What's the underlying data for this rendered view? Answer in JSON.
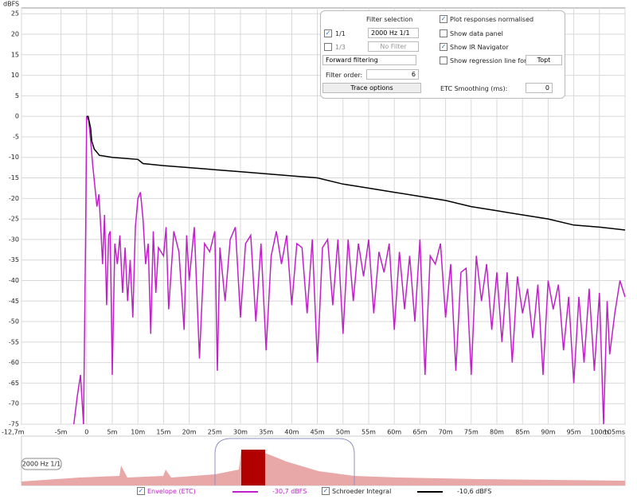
{
  "chart_data": {
    "type": "line",
    "y_label": "dBFS",
    "xlim": [
      -12.7,
      105
    ],
    "ylim": [
      -75,
      26.4
    ],
    "xticks": [
      {
        "value": -12.7,
        "label": "-12,7m"
      },
      {
        "value": -5,
        "label": "-5m"
      },
      0,
      {
        "value": 5,
        "label": "5m"
      },
      {
        "value": 10,
        "label": "10m"
      },
      {
        "value": 15,
        "label": "15m"
      },
      {
        "value": 20,
        "label": "20m"
      },
      {
        "value": 25,
        "label": "25m"
      },
      {
        "value": 30,
        "label": "30m"
      },
      {
        "value": 35,
        "label": "35m"
      },
      {
        "value": 40,
        "label": "40m"
      },
      {
        "value": 45,
        "label": "45m"
      },
      {
        "value": 50,
        "label": "50m"
      },
      {
        "value": 55,
        "label": "55m"
      },
      {
        "value": 60,
        "label": "60m"
      },
      {
        "value": 65,
        "label": "65m"
      },
      {
        "value": 70,
        "label": "70m"
      },
      {
        "value": 75,
        "label": "75m"
      },
      {
        "value": 80,
        "label": "80m"
      },
      {
        "value": 85,
        "label": "85m"
      },
      {
        "value": 90,
        "label": "90m"
      },
      {
        "value": 95,
        "label": "95m"
      },
      {
        "value": 100,
        "label": "100m"
      },
      {
        "value": 105,
        "label": "105ms"
      }
    ],
    "yticks": [
      25,
      20,
      15,
      10,
      5,
      0,
      -5,
      -10,
      -15,
      -20,
      -25,
      -30,
      -35,
      -40,
      -45,
      -50,
      -55,
      -60,
      -65,
      -70,
      -75
    ],
    "grid": true,
    "series": [
      {
        "name": "Envelope (ETC)",
        "color": "#c020c8",
        "cursor": "-30,7 dBFS",
        "x": [
          -2.5,
          -1.8,
          -1.2,
          -0.6,
          -0.2,
          0,
          0.4,
          0.8,
          1.2,
          1.6,
          2,
          2.4,
          2.8,
          3.1,
          3.5,
          3.9,
          4.3,
          4.6,
          5,
          5.5,
          6,
          6.5,
          7,
          7.5,
          8,
          8.5,
          9,
          9.5,
          10,
          10.5,
          11,
          11.5,
          12,
          12.5,
          13,
          13.5,
          14,
          15,
          15.5,
          16,
          17,
          18,
          19,
          19.5,
          20,
          21,
          22,
          23,
          24,
          25,
          25.5,
          26,
          27,
          28,
          29,
          30,
          31,
          32,
          33,
          34,
          35,
          36,
          37,
          38,
          39,
          40,
          41,
          42,
          43,
          44,
          45,
          46,
          47,
          48,
          49,
          50,
          51,
          52,
          53,
          54,
          55,
          56,
          57,
          58,
          59,
          60,
          61,
          62,
          63,
          64,
          65,
          66,
          67,
          68,
          69,
          70,
          71,
          72,
          73,
          74,
          75,
          76,
          77,
          78,
          79,
          80,
          81,
          82,
          83,
          84,
          85,
          86,
          87,
          88,
          89,
          90,
          91,
          92,
          93,
          94,
          95,
          96,
          97,
          98,
          99,
          100,
          100.8,
          101.5,
          102,
          103,
          104,
          105
        ],
        "values": [
          -75,
          -68,
          -63,
          -75,
          -30,
          0,
          -1,
          -6,
          -12,
          -17,
          -22,
          -19,
          -28,
          -36,
          -24,
          -46,
          -29,
          -28,
          -63,
          -31,
          -36,
          -29,
          -43,
          -32,
          -45,
          -35,
          -49,
          -27,
          -20,
          -18.5,
          -25,
          -36,
          -31,
          -53,
          -28,
          -43,
          -32,
          -34,
          -27,
          -47,
          -28,
          -33,
          -52,
          -29,
          -40,
          -27,
          -59,
          -31,
          -33,
          -28,
          -62,
          -32,
          -45,
          -30,
          -27,
          -49,
          -31,
          -29,
          -50,
          -31,
          -57,
          -34,
          -28,
          -36,
          -29,
          -46,
          -31,
          -32,
          -48,
          -30,
          -60,
          -32,
          -30,
          -46,
          -30,
          -53,
          -30,
          -45,
          -31,
          -39,
          -30,
          -48,
          -33,
          -38,
          -31,
          -52,
          -33,
          -47,
          -34,
          -50,
          -30,
          -63,
          -34,
          -36,
          -31,
          -49,
          -36,
          -62,
          -38,
          -37,
          -63,
          -34,
          -45,
          -36,
          -52,
          -38,
          -55,
          -38,
          -60,
          -39,
          -48,
          -42,
          -54,
          -41,
          -63,
          -40,
          -47,
          -41,
          -57,
          -44,
          -65,
          -44,
          -60,
          -42,
          -62,
          -43,
          -75,
          -45,
          -58,
          -48,
          -40,
          -44
        ]
      },
      {
        "name": "Schroeder Integral",
        "color": "#000000",
        "cursor": "-10,6 dBFS",
        "x": [
          0,
          0.3,
          0.8,
          1,
          1.5,
          2.5,
          5,
          10,
          11,
          15,
          20,
          25,
          30,
          40,
          45,
          50,
          55,
          60,
          65,
          70,
          75,
          80,
          85,
          90,
          95,
          100,
          105
        ],
        "values": [
          0,
          0,
          -3,
          -6,
          -8,
          -9.5,
          -10,
          -10.5,
          -11.5,
          -12,
          -12.5,
          -13,
          -13.5,
          -14.5,
          -15,
          -16.5,
          -17.5,
          -18.5,
          -19.5,
          -20.5,
          -22,
          -23,
          -24,
          -25,
          -26.5,
          -27,
          -27.7
        ]
      }
    ]
  },
  "navigator": {
    "label": "2000 Hz 1/1"
  },
  "controls": {
    "filter_selection": "Filter selection",
    "octave": "1/1",
    "octave_filter": "2000 Hz 1/1",
    "third": "1/3",
    "third_filter": "No Filter",
    "direction": "Forward filtering",
    "order_label": "Filter order:",
    "order": 6,
    "trace_options": "Trace options",
    "normalised": "Plot responses normalised",
    "data_panel": "Show data panel",
    "ir_nav": "Show IR Navigator",
    "regression": "Show regression line for:",
    "regression_target": "Topt",
    "smoothing_label": "ETC Smoothing (ms):",
    "smoothing": 0
  }
}
